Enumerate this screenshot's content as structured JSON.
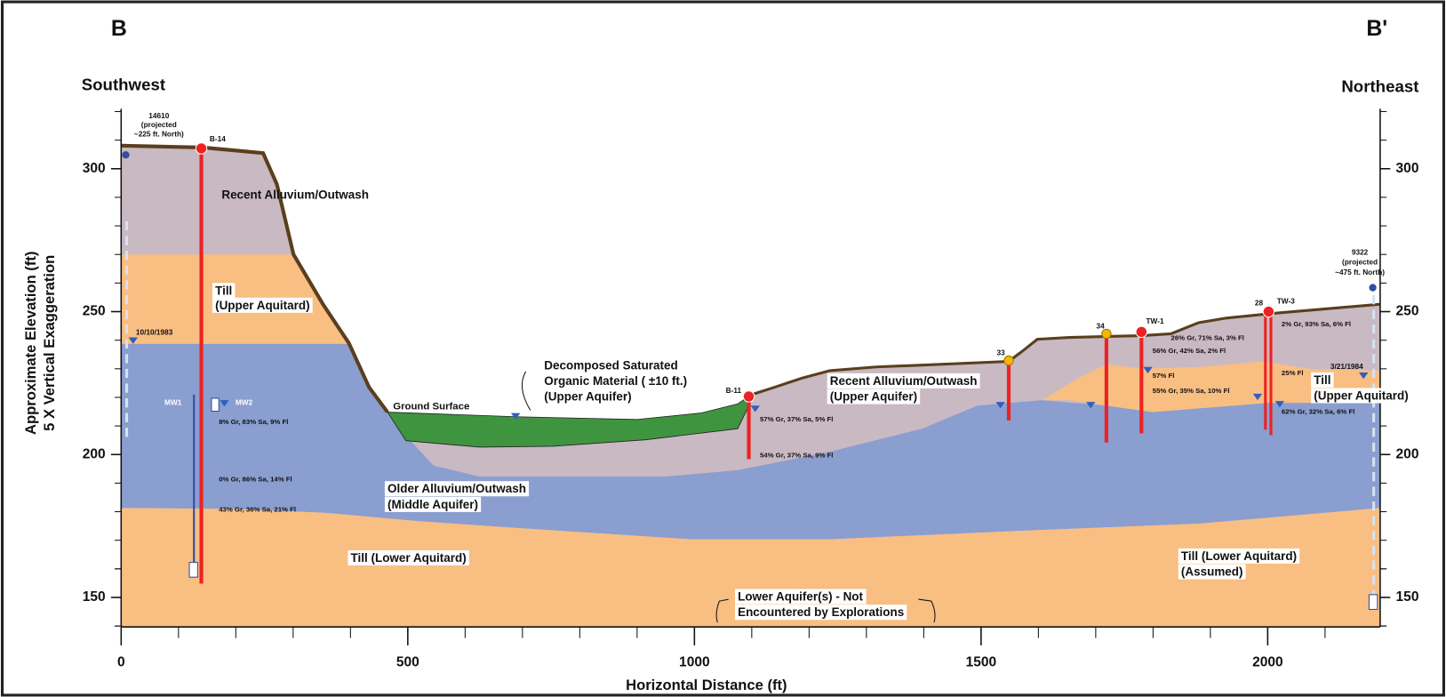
{
  "header": {
    "left": "B",
    "right": "B'"
  },
  "directions": {
    "left": "Southwest",
    "right": "Northeast"
  },
  "axes": {
    "y_label": [
      "Approximate Elevation (ft)",
      "5 X Vertical Exaggeration"
    ],
    "x_label": "Horizontal Distance (ft)",
    "y_ticks": [
      150,
      200,
      250,
      300
    ],
    "x_ticks": [
      0,
      500,
      1000,
      1500,
      2000
    ]
  },
  "layers": {
    "recent_alluvium_left": "Recent Alluvium/Outwash",
    "till_upper_left": [
      "Till",
      "(Upper Aquitard)"
    ],
    "older_alluvium": [
      "Older Alluvium/Outwash",
      "(Middle Aquifer)"
    ],
    "till_lower": "Till (Lower Aquitard)",
    "organic": [
      "Decomposed Saturated",
      "Organic Material ( ±10 ft.)",
      "(Upper Aquifer)"
    ],
    "ground_surface": "Ground Surface",
    "recent_alluvium_right": [
      "Recent Alluvium/Outwash",
      "(Upper Aquifer)"
    ],
    "till_upper_right": [
      "Till",
      "(Upper Aquitard)"
    ],
    "till_lower_right": [
      "Till (Lower Aquitard)",
      "(Assumed)"
    ],
    "lower_aquifer": [
      "Lower Aquifer(s) - Not",
      "Encountered by Explorations"
    ]
  },
  "wells": {
    "w14610": [
      "14610",
      "(projected",
      "~225 ft. North)"
    ],
    "w9322": [
      "9322",
      "(projected",
      "~475 ft. North)"
    ],
    "b14": "B-14",
    "b11": "B-11",
    "w33": "33",
    "w34": "34",
    "tw1": "TW-1",
    "tw3": "TW-3",
    "w28": "28",
    "mw1": "MW1",
    "mw2": "MW2",
    "date_left": "10/10/1983",
    "date_right": "3/21/1984"
  },
  "samples": {
    "b14": [
      "8% Gr, 83% Sa, 9% Fl",
      "0% Gr, 86% Sa, 14% Fl",
      "43% Gr, 36% Sa, 21% Fl"
    ],
    "b11": [
      "57% Gr, 37% Sa, 5% Fl",
      "54% Gr, 37% Sa, 9% Fl"
    ],
    "tw1": [
      "26% Gr, 71% Sa, 3% Fl",
      "56% Gr, 42% Sa, 2% Fl",
      "57% Fl",
      "55% Gr, 35% Sa, 10% Fl"
    ],
    "tw3": [
      "2% Gr, 93% Sa, 6% Fl",
      "25% Fl",
      "62% Gr, 32% Sa, 6% Fl"
    ]
  }
}
